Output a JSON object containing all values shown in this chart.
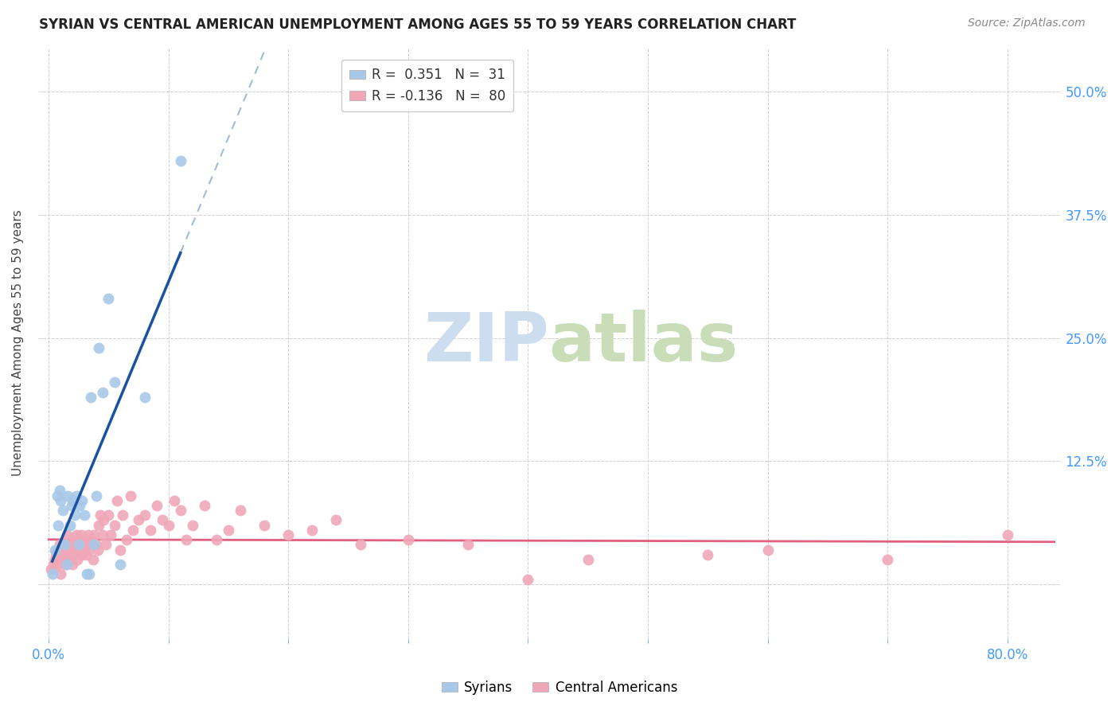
{
  "title": "SYRIAN VS CENTRAL AMERICAN UNEMPLOYMENT AMONG AGES 55 TO 59 YEARS CORRELATION CHART",
  "source": "Source: ZipAtlas.com",
  "ylabel": "Unemployment Among Ages 55 to 59 years",
  "legend_r_syrian": "0.351",
  "legend_n_syrian": "31",
  "legend_r_central": "-0.136",
  "legend_n_central": "80",
  "xlim": [
    -0.005,
    0.84
  ],
  "ylim": [
    -0.055,
    0.545
  ],
  "xticks": [
    0.0,
    0.1,
    0.2,
    0.3,
    0.4,
    0.5,
    0.6,
    0.7,
    0.8
  ],
  "yticks": [
    0.0,
    0.125,
    0.25,
    0.375,
    0.5
  ],
  "ytick_labels": [
    "",
    "12.5%",
    "25.0%",
    "37.5%",
    "50.0%"
  ],
  "xtick_labels_show": [
    "0.0%",
    "",
    "",
    "",
    "",
    "",
    "",
    "",
    "80.0%"
  ],
  "syrians_x": [
    0.003,
    0.005,
    0.007,
    0.008,
    0.009,
    0.01,
    0.012,
    0.013,
    0.015,
    0.016,
    0.018,
    0.019,
    0.02,
    0.022,
    0.023,
    0.025,
    0.026,
    0.028,
    0.03,
    0.032,
    0.034,
    0.035,
    0.038,
    0.04,
    0.042,
    0.045,
    0.05,
    0.055,
    0.06,
    0.08,
    0.11
  ],
  "syrians_y": [
    0.01,
    0.035,
    0.09,
    0.06,
    0.095,
    0.085,
    0.075,
    0.04,
    0.02,
    0.09,
    0.06,
    0.08,
    0.085,
    0.07,
    0.09,
    0.04,
    0.08,
    0.085,
    0.07,
    0.01,
    0.01,
    0.19,
    0.04,
    0.09,
    0.24,
    0.195,
    0.29,
    0.205,
    0.02,
    0.19,
    0.43
  ],
  "central_x": [
    0.002,
    0.004,
    0.005,
    0.006,
    0.007,
    0.008,
    0.009,
    0.01,
    0.011,
    0.012,
    0.013,
    0.014,
    0.015,
    0.015,
    0.016,
    0.017,
    0.018,
    0.019,
    0.02,
    0.02,
    0.021,
    0.022,
    0.023,
    0.024,
    0.025,
    0.026,
    0.027,
    0.028,
    0.03,
    0.031,
    0.032,
    0.033,
    0.034,
    0.035,
    0.036,
    0.037,
    0.038,
    0.04,
    0.041,
    0.042,
    0.043,
    0.045,
    0.046,
    0.048,
    0.05,
    0.052,
    0.055,
    0.057,
    0.06,
    0.062,
    0.065,
    0.068,
    0.07,
    0.075,
    0.08,
    0.085,
    0.09,
    0.095,
    0.1,
    0.105,
    0.11,
    0.115,
    0.12,
    0.13,
    0.14,
    0.15,
    0.16,
    0.18,
    0.2,
    0.22,
    0.24,
    0.26,
    0.3,
    0.35,
    0.4,
    0.45,
    0.55,
    0.6,
    0.7,
    0.8
  ],
  "central_y": [
    0.015,
    0.02,
    0.025,
    0.03,
    0.02,
    0.035,
    0.04,
    0.01,
    0.025,
    0.04,
    0.03,
    0.02,
    0.025,
    0.05,
    0.03,
    0.035,
    0.025,
    0.04,
    0.02,
    0.045,
    0.03,
    0.04,
    0.05,
    0.025,
    0.035,
    0.04,
    0.05,
    0.03,
    0.045,
    0.03,
    0.04,
    0.05,
    0.035,
    0.04,
    0.045,
    0.025,
    0.05,
    0.04,
    0.035,
    0.06,
    0.07,
    0.05,
    0.065,
    0.04,
    0.07,
    0.05,
    0.06,
    0.085,
    0.035,
    0.07,
    0.045,
    0.09,
    0.055,
    0.065,
    0.07,
    0.055,
    0.08,
    0.065,
    0.06,
    0.085,
    0.075,
    0.045,
    0.06,
    0.08,
    0.045,
    0.055,
    0.075,
    0.06,
    0.05,
    0.055,
    0.065,
    0.04,
    0.045,
    0.04,
    0.005,
    0.025,
    0.03,
    0.035,
    0.025,
    0.05
  ],
  "syrian_color": "#a8c8e8",
  "central_color": "#f0a8b8",
  "syrian_line_solid_color": "#1a52a0",
  "syrian_line_dash_color": "#a0bcd8",
  "central_line_color": "#e06080",
  "background_color": "#ffffff",
  "grid_color": "#d0d0d0",
  "title_color": "#222222",
  "source_color": "#888888",
  "axis_label_color": "#444444",
  "tick_color": "#4499ff",
  "watermark_zip_color": "#ccddf0",
  "watermark_atlas_color": "#c8ddb8"
}
